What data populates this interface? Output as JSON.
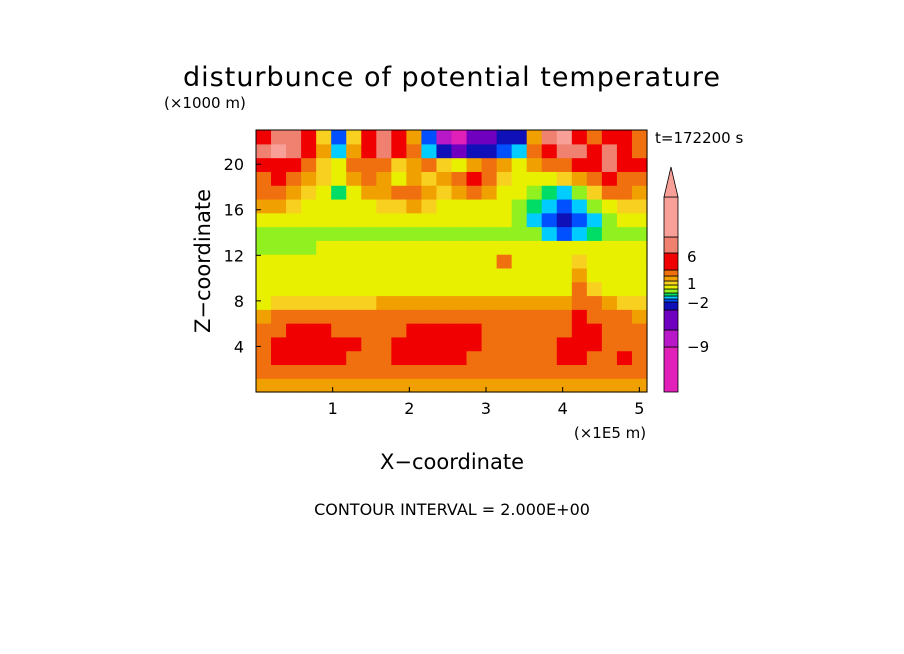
{
  "chart_data": {
    "type": "heatmap",
    "title": "disturbunce of potential temperature",
    "time_label": "t=172200 s",
    "xlabel": "X−coordinate",
    "ylabel": "Z−coordinate",
    "x_unit": "(×1E5 m)",
    "y_unit": "(×1000 m)",
    "footer": "CONTOUR INTERVAL = 2.000E+00",
    "xlim": [
      0,
      5.1
    ],
    "ylim": [
      0,
      23
    ],
    "x_ticks": [
      1,
      2,
      3,
      4,
      5
    ],
    "y_ticks": [
      4,
      8,
      12,
      16,
      20
    ],
    "colorbar": {
      "levels": [
        -13,
        -11,
        -9,
        -7,
        -5,
        -3,
        -2,
        -1,
        1,
        2,
        3,
        5,
        7,
        9,
        11
      ],
      "colors": [
        "#e020b8",
        "#b818c8",
        "#7000c0",
        "#1010b8",
        "#0050ff",
        "#00ccff",
        "#00dd66",
        "#90f020",
        "#e8f000",
        "#f8d020",
        "#f0a000",
        "#f07010",
        "#f00000",
        "#f08070",
        "#f8a098"
      ],
      "tick_labels": [
        {
          "label": "6",
          "value": 6
        },
        {
          "label": "1",
          "value": 1
        },
        {
          "label": "−2",
          "value": -2
        },
        {
          "label": "−9",
          "value": -9
        }
      ]
    },
    "field_grid": {
      "x_range": [
        0,
        5.1
      ],
      "z_range": [
        0,
        23
      ],
      "z_rows_bottom_to_top": [
        [
          2,
          2,
          2,
          2,
          2,
          2,
          2,
          2,
          2,
          2,
          2,
          2,
          2,
          2,
          2,
          2,
          2,
          2,
          2,
          2,
          2,
          2,
          2,
          2,
          2,
          2
        ],
        [
          3,
          4,
          4,
          4,
          4,
          3,
          3,
          4,
          4,
          4,
          4,
          4,
          3,
          3,
          3,
          3,
          3,
          3,
          3,
          3,
          3,
          4,
          3,
          3,
          3,
          3
        ],
        [
          4,
          5,
          5,
          6,
          6,
          5,
          4,
          4,
          4,
          5,
          5,
          5,
          5,
          5,
          4,
          4,
          4,
          4,
          4,
          4,
          5,
          5,
          4,
          4,
          5,
          4
        ],
        [
          4,
          5,
          6,
          6,
          6,
          5,
          5,
          4,
          4,
          5,
          5,
          5,
          5,
          5,
          5,
          4,
          4,
          4,
          4,
          4,
          5,
          5,
          5,
          4,
          4,
          4
        ],
        [
          3,
          4,
          5,
          5,
          5,
          4,
          4,
          4,
          4,
          4,
          5,
          5,
          5,
          5,
          5,
          4,
          4,
          4,
          4,
          4,
          4,
          5,
          5,
          4,
          4,
          3
        ],
        [
          2,
          3,
          3,
          3,
          3,
          3,
          3,
          3,
          3,
          3,
          3,
          3,
          3,
          4,
          4,
          4,
          3,
          3,
          3,
          3,
          3,
          5,
          4,
          3,
          3,
          2
        ],
        [
          0,
          1,
          1,
          1,
          1,
          1,
          1,
          1,
          2,
          2,
          2,
          2,
          2,
          2,
          2,
          2,
          2,
          2,
          2,
          2,
          2,
          4,
          3,
          2,
          1,
          1
        ],
        [
          0,
          0,
          0,
          0,
          0,
          0,
          0,
          0,
          0,
          0,
          0,
          0,
          0,
          0,
          0,
          0,
          0,
          0,
          0,
          0,
          0,
          3,
          1,
          0,
          0,
          0
        ],
        [
          0,
          0,
          0,
          0,
          0,
          0,
          0,
          0,
          0,
          0,
          0,
          0,
          0,
          0,
          0,
          0,
          0,
          0,
          0,
          0,
          0,
          2,
          0,
          0,
          0,
          0
        ],
        [
          -1,
          -1,
          -1,
          -1,
          0,
          0,
          0,
          0,
          0,
          0,
          0,
          0,
          0,
          0,
          0,
          0,
          3,
          0,
          0,
          0,
          0,
          1,
          0,
          0,
          0,
          0
        ],
        [
          -2,
          -2,
          -2,
          -2,
          -1,
          -1,
          -1,
          -1,
          -1,
          -1,
          -1,
          -1,
          -1,
          -1,
          -1,
          -1,
          -1,
          -1,
          0,
          -1,
          -1,
          0,
          -1,
          -1,
          -1,
          -1
        ],
        [
          -2,
          -2,
          -2,
          -2,
          -2,
          -2,
          -2,
          -2,
          -2,
          -2,
          -2,
          -2,
          -2,
          -2,
          -2,
          -2,
          -2,
          -2,
          -2,
          -4,
          -6,
          -5,
          -3,
          -2,
          -2,
          -2
        ],
        [
          0,
          0,
          -1,
          -1,
          0,
          0,
          -1,
          -1,
          0,
          0,
          0,
          -1,
          -1,
          -1,
          0,
          -1,
          -1,
          -2,
          -5,
          -7,
          -8,
          -7,
          -4,
          -2,
          -1,
          0
        ],
        [
          2,
          2,
          1,
          0,
          0,
          0,
          0,
          0,
          1,
          1,
          2,
          1,
          0,
          0,
          0,
          0,
          -1,
          -2,
          -3,
          -5,
          -7,
          -5,
          -2,
          0,
          1,
          1
        ],
        [
          3,
          4,
          2,
          1,
          0,
          -3,
          0,
          2,
          2,
          3,
          3,
          2,
          1,
          2,
          4,
          2,
          0,
          -1,
          -2,
          -3,
          -4,
          -2,
          1,
          3,
          3,
          2
        ],
        [
          4,
          5,
          3,
          2,
          1,
          0,
          2,
          3,
          2,
          0,
          2,
          1,
          2,
          3,
          5,
          3,
          1,
          0,
          -1,
          0,
          1,
          2,
          4,
          5,
          4,
          3
        ],
        [
          5,
          6,
          5,
          3,
          1,
          0,
          3,
          4,
          3,
          1,
          2,
          3,
          1,
          0,
          2,
          3,
          2,
          0,
          2,
          3,
          4,
          5,
          6,
          7,
          6,
          5
        ],
        [
          7,
          9,
          8,
          5,
          2,
          -5,
          2,
          6,
          7,
          5,
          3,
          -4,
          -8,
          -10,
          -9,
          -8,
          -6,
          -5,
          3,
          6,
          8,
          7,
          6,
          8,
          6,
          4
        ],
        [
          6,
          8,
          7,
          5,
          1,
          -7,
          1,
          5,
          8,
          6,
          2,
          -7,
          -12,
          -14,
          -11,
          -10,
          -9,
          -8,
          2,
          8,
          9,
          6,
          4,
          6,
          5,
          3
        ]
      ]
    }
  }
}
